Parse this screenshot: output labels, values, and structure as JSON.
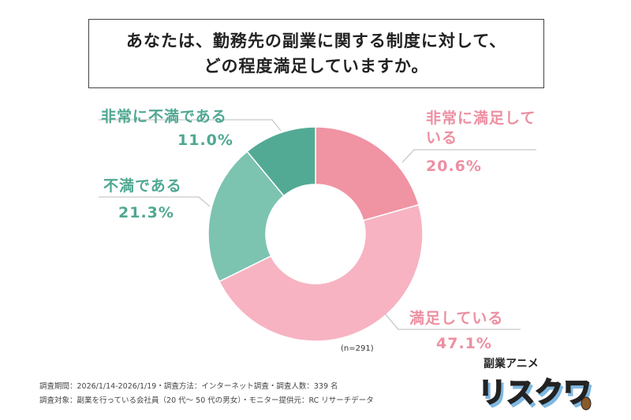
{
  "title_lines": [
    "あなたは、勤務先の副業に関する制度に対して、",
    "どの程度満足していますか。"
  ],
  "chart_data": {
    "type": "pie",
    "donut": true,
    "categories": [
      "非常に満足している",
      "満足している",
      "不満である",
      "非常に不満である"
    ],
    "values": [
      20.6,
      47.1,
      21.3,
      11.0
    ],
    "value_labels": [
      "20.6%",
      "47.1%",
      "21.3%",
      "11.0%"
    ],
    "colors": [
      "#f093a3",
      "#f7b3c2",
      "#7cc3b0",
      "#52aa95"
    ],
    "label_colors": [
      "#ec8fa1",
      "#ec8fa1",
      "#4fa892",
      "#4fa892"
    ],
    "start": "top",
    "direction": "clockwise",
    "sample_note": "(n=291)"
  },
  "footer": [
    "調査期間：2026/1/14-2026/1/19・調査方法：インターネット調査・調査人数：339 名",
    "調査対象：副業を行っている会社員（20 代～ 50 代の男女）・モニター提供元：RC リサーチデータ"
  ],
  "logo": {
    "small": "副業アニメ",
    "main": "リスクワ"
  }
}
